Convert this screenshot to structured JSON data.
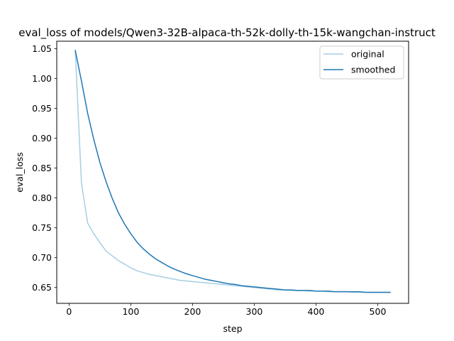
{
  "chart_data": {
    "type": "line",
    "title": "eval_loss of models/Qwen3-32B-alpaca-th-52k-dolly-th-15k-wangchan-instruct",
    "xlabel": "step",
    "ylabel": "eval_loss",
    "xlim": [
      -20,
      550
    ],
    "ylim": [
      0.6235,
      1.0625
    ],
    "xticks": [
      0,
      100,
      200,
      300,
      400,
      500
    ],
    "yticks": [
      0.65,
      0.7,
      0.75,
      0.8,
      0.85,
      0.9,
      0.95,
      1.0,
      1.05
    ],
    "xtick_labels": [
      "0",
      "100",
      "200",
      "300",
      "400",
      "500"
    ],
    "ytick_labels": [
      "0.65",
      "0.70",
      "0.75",
      "0.80",
      "0.85",
      "0.90",
      "0.95",
      "1.00",
      "1.05"
    ],
    "legend_position": "top-right",
    "grid": false,
    "x": [
      10,
      20,
      30,
      40,
      50,
      60,
      70,
      80,
      90,
      100,
      110,
      120,
      130,
      140,
      150,
      160,
      170,
      180,
      190,
      200,
      210,
      220,
      230,
      240,
      250,
      260,
      270,
      280,
      290,
      300,
      310,
      320,
      330,
      340,
      350,
      360,
      370,
      380,
      390,
      400,
      410,
      420,
      430,
      440,
      450,
      460,
      470,
      480,
      490,
      500,
      510,
      520
    ],
    "series": [
      {
        "name": "original",
        "color": "#a6cee3",
        "values": [
          1.047,
          0.825,
          0.758,
          0.74,
          0.725,
          0.711,
          0.703,
          0.695,
          0.689,
          0.683,
          0.678,
          0.675,
          0.672,
          0.67,
          0.668,
          0.666,
          0.664,
          0.662,
          0.661,
          0.66,
          0.659,
          0.658,
          0.657,
          0.656,
          0.655,
          0.654,
          0.653,
          0.652,
          0.651,
          0.65,
          0.649,
          0.648,
          0.647,
          0.646,
          0.646,
          0.645,
          0.645,
          0.645,
          0.644,
          0.644,
          0.644,
          0.643,
          0.643,
          0.643,
          0.643,
          0.642,
          0.642,
          0.642,
          0.642,
          0.642,
          0.642,
          0.642
        ]
      },
      {
        "name": "smoothed",
        "color": "#1f77b4",
        "values": [
          1.047,
          0.996,
          0.942,
          0.898,
          0.859,
          0.827,
          0.799,
          0.775,
          0.756,
          0.74,
          0.726,
          0.715,
          0.706,
          0.698,
          0.692,
          0.686,
          0.681,
          0.677,
          0.673,
          0.67,
          0.667,
          0.664,
          0.662,
          0.66,
          0.658,
          0.656,
          0.655,
          0.653,
          0.652,
          0.651,
          0.65,
          0.649,
          0.648,
          0.647,
          0.646,
          0.646,
          0.645,
          0.645,
          0.645,
          0.644,
          0.644,
          0.644,
          0.643,
          0.643,
          0.643,
          0.643,
          0.643,
          0.642,
          0.642,
          0.642,
          0.642,
          0.642
        ]
      }
    ]
  }
}
